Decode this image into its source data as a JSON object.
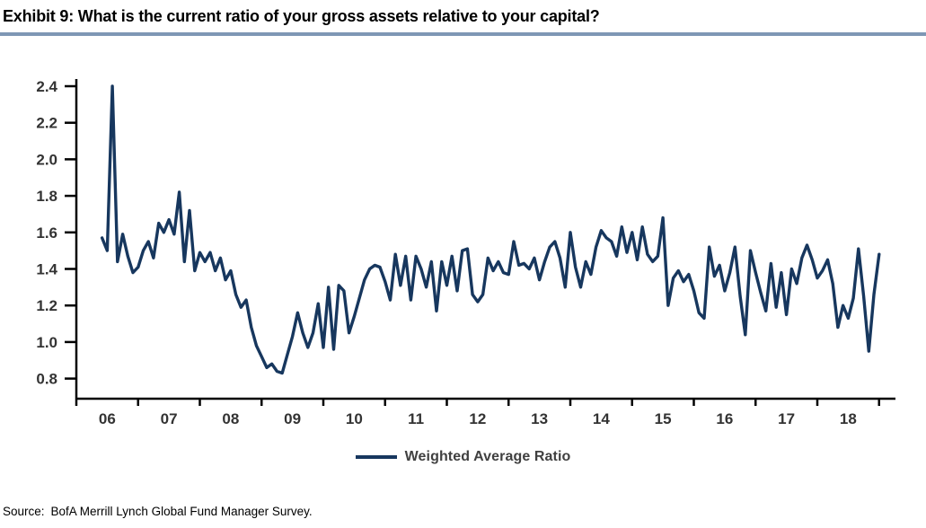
{
  "header": {
    "title": "Exhibit 9: What is the current ratio of your gross assets relative to your capital?"
  },
  "legend": {
    "label": "Weighted Average Ratio"
  },
  "footer": {
    "source_label": "Source:",
    "source_text": "BofA Merrill Lynch Global Fund Manager Survey."
  },
  "colors": {
    "line": "#17375E",
    "axis": "#000000",
    "tick_label": "#333333",
    "title_rule": "#7E97B5",
    "legend_text": "#404040",
    "title_text": "#000000"
  },
  "chart_data": {
    "type": "line",
    "title": "Exhibit 9: What is the current ratio of your gross assets relative to your capital?",
    "xlabel": "",
    "ylabel": "",
    "grid": false,
    "legend_position": "bottom",
    "x_unit": "month",
    "x_start": "2006-06",
    "x_tick_labels": [
      "06",
      "07",
      "08",
      "09",
      "10",
      "11",
      "12",
      "13",
      "14",
      "15",
      "16",
      "17",
      "18"
    ],
    "y_tick_labels": [
      "2.4",
      "2.2",
      "2.0",
      "1.8",
      "1.6",
      "1.4",
      "1.2",
      "1.0",
      "0.8"
    ],
    "ylim": [
      0.69,
      2.44
    ],
    "series": [
      {
        "name": "Weighted Average Ratio",
        "values": [
          1.57,
          1.5,
          2.4,
          1.44,
          1.59,
          1.47,
          1.38,
          1.41,
          1.5,
          1.55,
          1.46,
          1.65,
          1.6,
          1.67,
          1.59,
          1.82,
          1.44,
          1.72,
          1.39,
          1.49,
          1.44,
          1.49,
          1.39,
          1.46,
          1.34,
          1.39,
          1.26,
          1.19,
          1.23,
          1.08,
          0.98,
          0.92,
          0.86,
          0.88,
          0.84,
          0.83,
          0.93,
          1.03,
          1.16,
          1.05,
          0.97,
          1.05,
          1.21,
          0.97,
          1.3,
          0.96,
          1.31,
          1.28,
          1.05,
          1.14,
          1.24,
          1.34,
          1.4,
          1.42,
          1.41,
          1.33,
          1.23,
          1.48,
          1.31,
          1.47,
          1.23,
          1.47,
          1.4,
          1.3,
          1.44,
          1.17,
          1.44,
          1.31,
          1.47,
          1.28,
          1.5,
          1.51,
          1.26,
          1.22,
          1.26,
          1.46,
          1.39,
          1.44,
          1.38,
          1.37,
          1.55,
          1.42,
          1.43,
          1.4,
          1.46,
          1.34,
          1.44,
          1.52,
          1.55,
          1.46,
          1.3,
          1.6,
          1.41,
          1.3,
          1.44,
          1.37,
          1.52,
          1.61,
          1.57,
          1.55,
          1.47,
          1.63,
          1.49,
          1.6,
          1.45,
          1.63,
          1.48,
          1.44,
          1.47,
          1.68,
          1.2,
          1.35,
          1.39,
          1.33,
          1.37,
          1.28,
          1.16,
          1.13,
          1.52,
          1.36,
          1.42,
          1.28,
          1.38,
          1.52,
          1.25,
          1.04,
          1.5,
          1.38,
          1.27,
          1.17,
          1.43,
          1.19,
          1.38,
          1.15,
          1.4,
          1.32,
          1.46,
          1.53,
          1.45,
          1.35,
          1.39,
          1.45,
          1.32,
          1.08,
          1.2,
          1.13,
          1.24,
          1.51,
          1.25,
          0.95,
          1.26,
          1.48
        ]
      }
    ]
  }
}
